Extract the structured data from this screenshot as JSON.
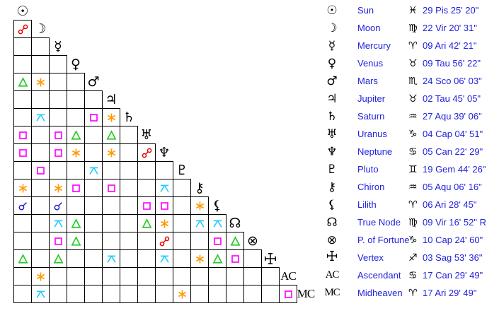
{
  "colors": {
    "background": "#ffffff",
    "grid_line": "#000000",
    "glyph": "#000000",
    "table_text": "#2222dd",
    "aspects": {
      "conjunction": "#2222cc",
      "opposition": "#ee0000",
      "square": "#ff00ff",
      "trine": "#22cc22",
      "sextile": "#ff9900",
      "quincunx": "#22ccff"
    }
  },
  "aspect_grid": {
    "planets": [
      {
        "name": "Sun",
        "glyph": "☉"
      },
      {
        "name": "Moon",
        "glyph": "☽"
      },
      {
        "name": "Mercury",
        "glyph": "☿"
      },
      {
        "name": "Venus",
        "glyph": "♀"
      },
      {
        "name": "Mars",
        "glyph": "♂"
      },
      {
        "name": "Jupiter",
        "glyph": "♃"
      },
      {
        "name": "Saturn",
        "glyph": "♄"
      },
      {
        "name": "Uranus",
        "glyph": "♅"
      },
      {
        "name": "Neptune",
        "glyph": "♆"
      },
      {
        "name": "Pluto",
        "glyph": "♇"
      },
      {
        "name": "Chiron",
        "glyph": "⚷"
      },
      {
        "name": "Lilith",
        "glyph": "⚸"
      },
      {
        "name": "True Node",
        "glyph": "☊"
      },
      {
        "name": "P. of Fortune",
        "glyph": "⊗"
      },
      {
        "name": "Vertex",
        "glyph": "✛"
      },
      {
        "name": "AC",
        "glyph": "AC"
      },
      {
        "name": "MC",
        "glyph": "MC"
      }
    ],
    "aspects": [
      [],
      [
        "opposition"
      ],
      [
        null,
        null
      ],
      [
        null,
        null,
        null
      ],
      [
        "trine",
        "sextile",
        null,
        null
      ],
      [
        null,
        null,
        null,
        null,
        null
      ],
      [
        null,
        "quincunx",
        null,
        null,
        "square",
        "sextile"
      ],
      [
        "square",
        null,
        "square",
        "trine",
        null,
        "trine",
        null
      ],
      [
        "square",
        null,
        "square",
        "sextile",
        null,
        "sextile",
        null,
        "opposition"
      ],
      [
        null,
        "square",
        null,
        null,
        "quincunx",
        null,
        null,
        null,
        null
      ],
      [
        "sextile",
        null,
        "sextile",
        "square",
        null,
        "square",
        null,
        null,
        "quincunx",
        null
      ],
      [
        "conjunction",
        null,
        "conjunction",
        null,
        null,
        null,
        null,
        "square",
        "square",
        null,
        "sextile"
      ],
      [
        null,
        null,
        "quincunx",
        "trine",
        null,
        null,
        null,
        "trine",
        "sextile",
        null,
        "quincunx",
        "quincunx"
      ],
      [
        null,
        null,
        "square",
        "trine",
        null,
        null,
        null,
        null,
        "opposition",
        null,
        null,
        "square",
        "trine"
      ],
      [
        "trine",
        null,
        "trine",
        null,
        null,
        "quincunx",
        null,
        null,
        "quincunx",
        null,
        "sextile",
        "trine",
        "square",
        null
      ],
      [
        null,
        "sextile",
        null,
        null,
        null,
        null,
        null,
        null,
        null,
        null,
        null,
        null,
        null,
        null,
        null
      ],
      [
        null,
        "quincunx",
        null,
        null,
        null,
        null,
        null,
        null,
        null,
        "sextile",
        null,
        null,
        null,
        null,
        null,
        "square"
      ]
    ]
  },
  "positions_table": {
    "rows": [
      {
        "glyph": "☉",
        "name": "Sun",
        "sign": "♓",
        "position": "29 Pis 25' 20\""
      },
      {
        "glyph": "☽",
        "name": "Moon",
        "sign": "♍",
        "position": "22 Vir 20' 31\""
      },
      {
        "glyph": "☿",
        "name": "Mercury",
        "sign": "♈",
        "position": "09 Ari 42' 21\""
      },
      {
        "glyph": "♀",
        "name": "Venus",
        "sign": "♉",
        "position": "09 Tau 56' 22\""
      },
      {
        "glyph": "♂",
        "name": "Mars",
        "sign": "♏",
        "position": "24 Sco 06' 03\""
      },
      {
        "glyph": "♃",
        "name": "Jupiter",
        "sign": "♉",
        "position": "02 Tau 45' 05\""
      },
      {
        "glyph": "♄",
        "name": "Saturn",
        "sign": "♒",
        "position": "27 Aqu 39' 06\""
      },
      {
        "glyph": "♅",
        "name": "Uranus",
        "sign": "♑",
        "position": "04 Cap 04' 51\""
      },
      {
        "glyph": "♆",
        "name": "Neptune",
        "sign": "♋",
        "position": "05 Can 22' 29\""
      },
      {
        "glyph": "♇",
        "name": "Pluto",
        "sign": "♊",
        "position": "19 Gem 44' 26\""
      },
      {
        "glyph": "⚷",
        "name": "Chiron",
        "sign": "♒",
        "position": "05 Aqu 06' 16\""
      },
      {
        "glyph": "⚸",
        "name": "Lilith",
        "sign": "♈",
        "position": "06 Ari 28' 45\""
      },
      {
        "glyph": "☊",
        "name": "True Node",
        "sign": "♍",
        "position": "09 Vir 16' 52\" R"
      },
      {
        "glyph": "⊗",
        "name": "P. of Fortune",
        "sign": "♑",
        "position": "10 Cap 24' 60\""
      },
      {
        "glyph": "✛",
        "name": "Vertex",
        "sign": "♐",
        "position": "03 Sag 53' 36\""
      },
      {
        "glyph": "AC",
        "name": "Ascendant",
        "sign": "♋",
        "position": "17 Can 29' 49\""
      },
      {
        "glyph": "MC",
        "name": "Midheaven",
        "sign": "♈",
        "position": "17 Ari 29' 49\""
      }
    ]
  }
}
